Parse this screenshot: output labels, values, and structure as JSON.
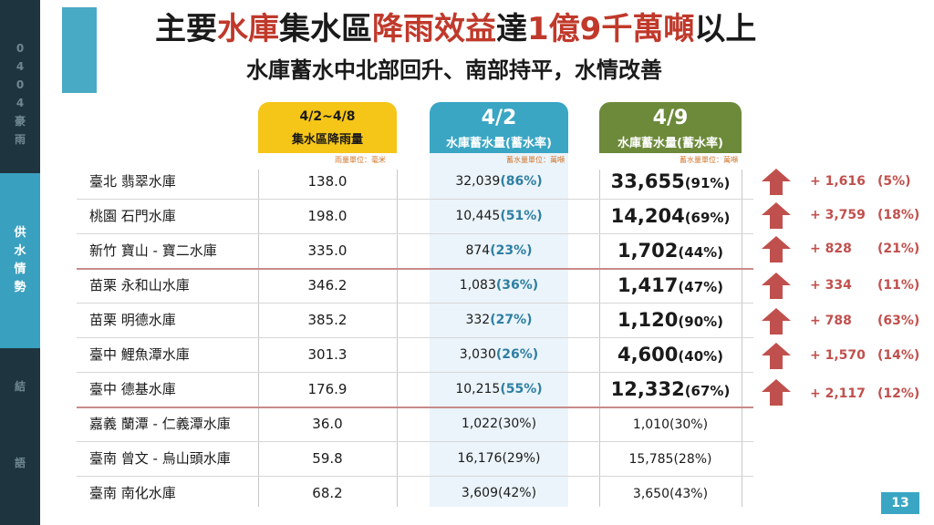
{
  "sidebar": {
    "sections": [
      {
        "chars": [
          "0",
          "4",
          "0",
          "4",
          "豪",
          "雨"
        ],
        "active": false
      },
      {
        "chars": [
          "供",
          "水",
          "情",
          "勢"
        ],
        "active": true
      },
      {
        "chars": [
          "結"
        ],
        "active": false
      },
      {
        "chars": [
          "語"
        ],
        "active": false
      }
    ]
  },
  "title": {
    "p1": "主要",
    "p2": "水庫",
    "p3": "集水區",
    "p4": "降雨效益",
    "p5": "達",
    "p6": "1億9千萬噸",
    "p7": "以上"
  },
  "subtitle": "水庫蓄水中北部回升、南部持平，水情改善",
  "headers": {
    "rain": {
      "line1": "4/2~4/8",
      "line2": "集水區降雨量",
      "unit": "雨量單位：毫米"
    },
    "a": {
      "line1": "4/2",
      "line2": "水庫蓄水量(蓄水率)",
      "unit": "蓄水量單位：萬噸"
    },
    "b": {
      "line1": "4/9",
      "line2": "水庫蓄水量(蓄水率)",
      "unit": "蓄水量單位：萬噸"
    }
  },
  "rows": [
    {
      "name": "臺北 翡翠水庫",
      "rain": "138.0",
      "a_val": "32,039",
      "a_pct": "(86%)",
      "b_val": "33,655",
      "b_pct": "(91%)",
      "delta": "+ 1,616",
      "dpct": "(5%)"
    },
    {
      "name": "桃園 石門水庫",
      "rain": "198.0",
      "a_val": "10,445",
      "a_pct": "(51%)",
      "b_val": "14,204",
      "b_pct": "(69%)",
      "delta": "+ 3,759",
      "dpct": "(18%)"
    },
    {
      "name": "新竹 寶山 - 寶二水庫",
      "rain": "335.0",
      "a_val": "874",
      "a_pct": "(23%)",
      "b_val": "1,702",
      "b_pct": "(44%)",
      "delta": "+ 828",
      "dpct": "(21%)"
    },
    {
      "name": "苗栗 永和山水庫",
      "rain": "346.2",
      "a_val": "1,083",
      "a_pct": "(36%)",
      "b_val": "1,417",
      "b_pct": "(47%)",
      "delta": "+ 334",
      "dpct": "(11%)"
    },
    {
      "name": "苗栗 明德水庫",
      "rain": "385.2",
      "a_val": "332",
      "a_pct": "(27%)",
      "b_val": "1,120",
      "b_pct": "(90%)",
      "delta": "+ 788",
      "dpct": "(63%)"
    },
    {
      "name": "臺中 鯉魚潭水庫",
      "rain": "301.3",
      "a_val": "3,030",
      "a_pct": "(26%)",
      "b_val": "4,600",
      "b_pct": "(40%)",
      "delta": "+ 1,570",
      "dpct": "(14%)"
    },
    {
      "name": "臺中 德基水庫",
      "rain": "176.9",
      "a_val": "10,215",
      "a_pct": "(55%)",
      "b_val": "12,332",
      "b_pct": "(67%)",
      "delta": "+ 2,117",
      "dpct": "(12%)"
    },
    {
      "name": "嘉義 蘭潭 - 仁義潭水庫",
      "rain": "36.0",
      "a_val": "1,022",
      "a_pct": "(30%)",
      "b_val": "1,010",
      "b_pct": "(30%)",
      "delta": "",
      "dpct": ""
    },
    {
      "name": "臺南 曾文 - 烏山頭水庫",
      "rain": "59.8",
      "a_val": "16,176",
      "a_pct": "(29%)",
      "b_val": "15,785",
      "b_pct": "(28%)",
      "delta": "",
      "dpct": ""
    },
    {
      "name": "臺南 南化水庫",
      "rain": "68.2",
      "a_val": "3,609",
      "a_pct": "(42%)",
      "b_val": "3,650",
      "b_pct": "(43%)",
      "delta": "",
      "dpct": ""
    }
  ],
  "page_number": "13",
  "colors": {
    "sidebar_bg": "#1e3540",
    "sidebar_active": "#3aa0bf",
    "accent_red": "#c0392b",
    "rain_header": "#f5c518",
    "a_header": "#3aa6c4",
    "b_header": "#6c8a3a",
    "arrow": "#c0504d"
  }
}
